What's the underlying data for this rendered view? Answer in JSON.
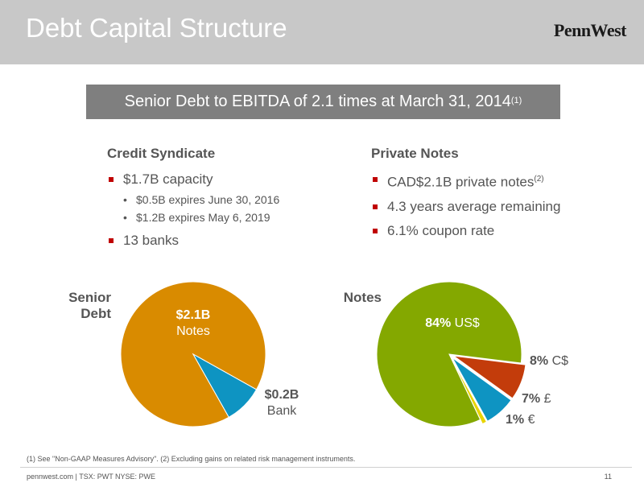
{
  "header": {
    "title": "Debt Capital Structure",
    "logo": "PennWest"
  },
  "banner": {
    "text": "Senior Debt to EBITDA of 2.1 times at March 31, 2014",
    "sup": "(1)"
  },
  "credit_syndicate": {
    "heading": "Credit Syndicate",
    "capacity": "$1.7B capacity",
    "sub_items": [
      "$0.5B expires June 30, 2016",
      "$1.2B expires May 6, 2019"
    ],
    "banks": "13 banks"
  },
  "private_notes": {
    "heading": "Private Notes",
    "items": [
      {
        "text": "CAD$2.1B private notes",
        "sup": "(2)"
      },
      {
        "text": "4.3 years average remaining",
        "sup": ""
      },
      {
        "text": "6.1% coupon rate",
        "sup": ""
      }
    ]
  },
  "senior_debt_chart": {
    "label_line1": "Senior",
    "label_line2": "Debt",
    "notes_value": "$2.1B",
    "notes_label": "Notes",
    "bank_value": "$0.2B",
    "bank_label": "Bank"
  },
  "notes_chart": {
    "label": "Notes",
    "us_pct": "84%",
    "us_label": "US$",
    "c_pct": "8%",
    "c_label": "C$",
    "gbp_pct": "7%",
    "gbp_label": "£",
    "eur_pct": "1%",
    "eur_label": "€"
  },
  "chart_data": [
    {
      "type": "pie",
      "title": "Senior Debt",
      "categories": [
        "Notes",
        "Bank"
      ],
      "values": [
        2.1,
        0.2
      ],
      "colors": [
        "#d98b00",
        "#0e94c2"
      ]
    },
    {
      "type": "pie",
      "title": "Notes",
      "categories": [
        "US$",
        "C$",
        "£",
        "€"
      ],
      "values": [
        84,
        8,
        7,
        1
      ],
      "colors": [
        "#84a800",
        "#c33c0b",
        "#0e94c2",
        "#e8d400"
      ]
    }
  ],
  "footnote": "(1) See \"Non-GAAP Measures Advisory\". (2) Excluding gains on related risk management instruments.",
  "footer": {
    "left": "pennwest.com | TSX: PWT  NYSE: PWE",
    "page": "11"
  }
}
